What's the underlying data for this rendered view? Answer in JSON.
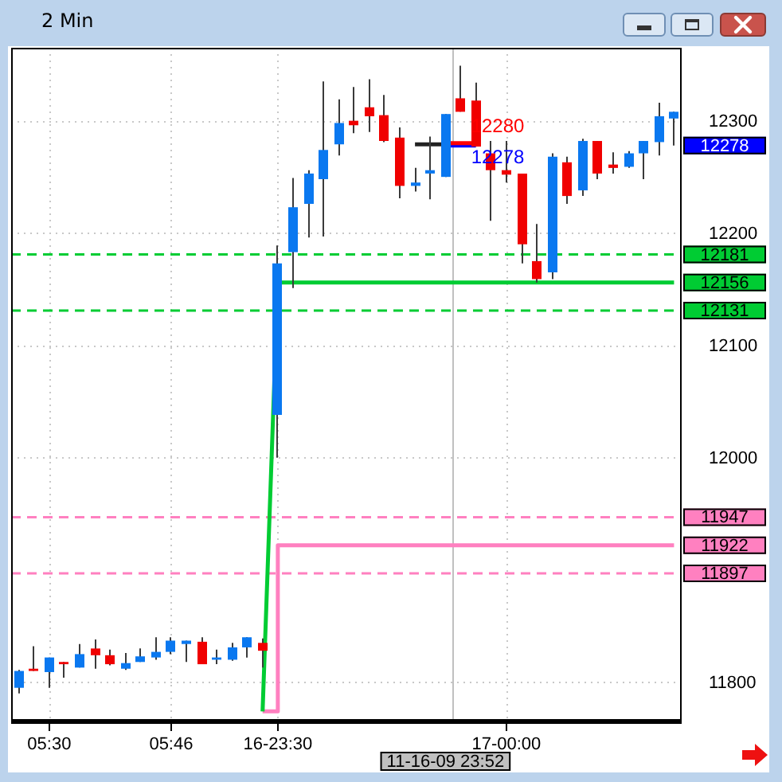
{
  "chart_data": {
    "type": "candlestick",
    "title": "2 Min",
    "categories": [
      null,
      null,
      "05:30",
      null,
      null,
      null,
      null,
      null,
      null,
      null,
      "05:46",
      null,
      null,
      null,
      null,
      null,
      null,
      "16-23:30",
      null,
      null,
      null,
      null,
      null,
      null,
      null,
      null,
      null,
      null,
      "11-16-09 23:52",
      null,
      null,
      null,
      "17-00:00",
      null,
      null,
      null,
      null,
      null,
      null,
      null,
      null,
      null,
      null,
      null
    ],
    "ohlc": [
      [
        11795,
        11811,
        11790,
        11810
      ],
      [
        11812,
        11832,
        11810,
        11810
      ],
      [
        11809,
        11822,
        11795,
        11822
      ],
      [
        11818,
        11818,
        11804,
        11816
      ],
      [
        11813,
        11834,
        11813,
        11825
      ],
      [
        11830,
        11838,
        11812,
        11824
      ],
      [
        11824,
        11829,
        11815,
        11816
      ],
      [
        11812,
        11826,
        11811,
        11817
      ],
      [
        11818,
        11830,
        11818,
        11823
      ],
      [
        11822,
        11840,
        11820,
        11827
      ],
      [
        11827,
        11840,
        11825,
        11837
      ],
      [
        11834,
        11837,
        11818,
        11837
      ],
      [
        11836,
        11840,
        11816,
        11816
      ],
      [
        11820,
        11829,
        11816,
        11822
      ],
      [
        11820,
        11835,
        11819,
        11831
      ],
      [
        11831,
        11840,
        11822,
        11840
      ],
      [
        11835,
        11839,
        11813,
        11828
      ],
      [
        12038,
        12189,
        12000,
        12173
      ],
      [
        12183,
        12249,
        12151,
        12223
      ],
      [
        12226,
        12256,
        12196,
        12253
      ],
      [
        12248,
        12335,
        12197,
        12274
      ],
      [
        12279,
        12319,
        12269,
        12298
      ],
      [
        12300,
        12330,
        12289,
        12296
      ],
      [
        12312,
        12337,
        12290,
        12304
      ],
      [
        12305,
        12323,
        12281,
        12282
      ],
      [
        12285,
        12294,
        12231,
        12242
      ],
      [
        12242,
        12258,
        12237,
        12245
      ],
      [
        12253,
        12286,
        12230,
        12256
      ],
      [
        12250,
        12306,
        12250,
        12306
      ],
      [
        12320,
        12349,
        12308,
        12308
      ],
      [
        12318,
        12334,
        12277,
        12277
      ],
      [
        12271,
        12282,
        12211,
        12256
      ],
      [
        12256,
        12282,
        12245,
        12252
      ],
      [
        12253,
        12253,
        12173,
        12190
      ],
      [
        12175,
        12208,
        12156,
        12159
      ],
      [
        12165,
        12271,
        12159,
        12268
      ],
      [
        12263,
        12268,
        12226,
        12233
      ],
      [
        12238,
        12284,
        12233,
        12282
      ],
      [
        12282,
        12282,
        12248,
        12253
      ],
      [
        12261,
        12272,
        12253,
        12258
      ],
      [
        12259,
        12273,
        12258,
        12271
      ],
      [
        12271,
        12282,
        12248,
        12282
      ],
      [
        12281,
        12316,
        12269,
        12304
      ],
      [
        12302,
        12308,
        12278,
        12308
      ]
    ],
    "colors": [
      "#0a78f0",
      "#f00000",
      "#0a78f0",
      "#f00000",
      "#0a78f0",
      "#f00000",
      "#f00000",
      "#0a78f0",
      "#0a78f0",
      "#0a78f0",
      "#0a78f0",
      "#0a78f0",
      "#f00000",
      "#0a78f0",
      "#0a78f0",
      "#0a78f0",
      "#f00000",
      "#0a78f0",
      "#0a78f0",
      "#0a78f0",
      "#0a78f0",
      "#0a78f0",
      "#f00000",
      "#f00000",
      "#f00000",
      "#f00000",
      "#0a78f0",
      "#0a78f0",
      "#0a78f0",
      "#f00000",
      "#f00000",
      "#f00000",
      "#f00000",
      "#f00000",
      "#f00000",
      "#0a78f0",
      "#f00000",
      "#0a78f0",
      "#f00000",
      "#f00000",
      "#0a78f0",
      "#0a78f0",
      "#0a78f0",
      "#0a78f0"
    ],
    "series": [
      {
        "type": "line",
        "color": "#00cc33",
        "values": [
          null,
          null,
          null,
          null,
          null,
          null,
          null,
          null,
          null,
          null,
          null,
          null,
          null,
          null,
          null,
          null,
          11774,
          12156,
          12156,
          12156,
          12156,
          12156,
          12156,
          12156,
          12156,
          12156,
          12156,
          12156,
          12156,
          12156,
          12156,
          12156,
          12156,
          12156,
          12156,
          12156,
          12156,
          12156,
          12156,
          12156,
          12156,
          12156,
          12156,
          12156
        ],
        "value_labels": [
          null,
          null,
          null,
          null,
          null,
          null,
          null,
          null,
          null,
          null,
          null,
          null,
          null,
          null,
          null,
          null,
          null,
          null,
          null,
          null,
          null,
          null,
          null,
          null,
          null,
          null,
          null,
          null,
          null,
          null,
          null,
          null,
          null,
          null,
          null,
          null,
          null,
          null,
          null,
          null,
          null,
          null,
          null,
          "12156"
        ]
      },
      {
        "type": "step",
        "color": "#ff80c0",
        "values": [
          null,
          null,
          null,
          null,
          null,
          null,
          null,
          null,
          null,
          null,
          null,
          null,
          null,
          null,
          null,
          null,
          11774,
          11922,
          11922,
          11922,
          11922,
          11922,
          11922,
          11922,
          11922,
          11922,
          11922,
          11922,
          11922,
          11922,
          11922,
          11922,
          11922,
          11922,
          11922,
          11922,
          11922,
          11922,
          11922,
          11922,
          11922,
          11922,
          11922,
          11922
        ],
        "value_labels": [
          null,
          null,
          null,
          null,
          null,
          null,
          null,
          null,
          null,
          null,
          null,
          null,
          null,
          null,
          null,
          null,
          null,
          null,
          null,
          null,
          null,
          null,
          null,
          null,
          null,
          null,
          null,
          null,
          null,
          null,
          null,
          null,
          null,
          null,
          null,
          null,
          null,
          null,
          null,
          null,
          null,
          null,
          null,
          "11922"
        ]
      },
      {
        "type": "line",
        "color": "#222222",
        "values": [
          null,
          null,
          null,
          null,
          null,
          null,
          null,
          null,
          null,
          null,
          null,
          null,
          null,
          null,
          null,
          null,
          null,
          null,
          null,
          null,
          null,
          null,
          null,
          null,
          null,
          null,
          12279,
          12279,
          12279,
          null,
          null,
          null,
          null,
          null,
          null,
          null,
          null,
          null,
          null,
          null,
          null,
          null,
          null,
          null
        ]
      },
      {
        "type": "line",
        "color": "#ff0000",
        "values": [
          null,
          null,
          null,
          null,
          null,
          null,
          null,
          null,
          null,
          null,
          null,
          null,
          null,
          null,
          null,
          null,
          null,
          null,
          null,
          null,
          null,
          null,
          null,
          null,
          null,
          null,
          null,
          null,
          12280,
          12280,
          12280,
          null,
          null,
          null,
          null,
          null,
          null,
          null,
          null,
          null,
          null,
          null,
          null,
          null
        ],
        "value_labels": [
          null,
          null,
          null,
          null,
          null,
          null,
          null,
          null,
          null,
          null,
          null,
          null,
          null,
          null,
          null,
          null,
          null,
          null,
          null,
          null,
          null,
          null,
          null,
          null,
          null,
          null,
          null,
          null,
          null,
          null,
          "12280",
          null,
          null,
          null,
          null,
          null,
          null,
          null,
          null,
          null,
          null,
          null,
          null,
          null
        ]
      },
      {
        "type": "line",
        "color": "#0000ff",
        "values": [
          null,
          null,
          null,
          null,
          null,
          null,
          null,
          null,
          null,
          null,
          null,
          null,
          null,
          null,
          null,
          null,
          null,
          null,
          null,
          null,
          null,
          null,
          null,
          null,
          null,
          null,
          null,
          null,
          12278,
          12278,
          12278,
          null,
          null,
          null,
          null,
          null,
          null,
          null,
          null,
          null,
          null,
          null,
          null,
          null
        ],
        "value_labels": [
          null,
          null,
          null,
          null,
          null,
          null,
          null,
          null,
          null,
          null,
          null,
          null,
          null,
          null,
          null,
          null,
          null,
          null,
          null,
          null,
          null,
          null,
          null,
          null,
          null,
          null,
          null,
          null,
          null,
          null,
          "12278",
          null,
          null,
          null,
          null,
          null,
          null,
          null,
          null,
          null,
          null,
          null,
          null,
          null
        ]
      }
    ],
    "ylim": [
      11765,
      12365
    ],
    "yticks": [
      11800,
      12000,
      12100,
      12200,
      12300
    ],
    "grid": true,
    "ref_lines": [
      {
        "axis": "y",
        "value": 12181,
        "label": "12181",
        "color": "#00cc33",
        "line_style": "dashed"
      },
      {
        "axis": "y",
        "value": 12131,
        "label": "12131",
        "color": "#00cc33",
        "line_style": "dashed"
      },
      {
        "axis": "y",
        "value": 11947,
        "label": "11947",
        "color": "#ff80c0",
        "line_style": "dashed"
      },
      {
        "axis": "y",
        "value": 11897,
        "label": "11897",
        "color": "#ff80c0",
        "line_style": "dashed"
      },
      {
        "axis": "x",
        "value": "11-16-09 23:52",
        "color": "#c0c0c0"
      }
    ],
    "annotations": [
      "12278"
    ]
  }
}
